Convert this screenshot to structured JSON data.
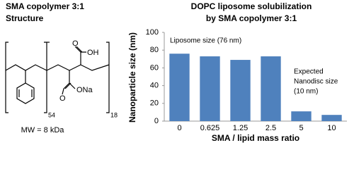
{
  "structure": {
    "title": [
      "SMA copolymer 3:1",
      "Structure"
    ],
    "atoms": [
      "O",
      "OH",
      "O",
      "ONa"
    ],
    "subscripts": [
      "54",
      "18"
    ],
    "mw": "MW = 8 kDa"
  },
  "chart_data": {
    "type": "bar",
    "title": [
      "DOPC liposome solubilization",
      "by SMA copolymer 3:1"
    ],
    "x_label": "SMA / lipid mass ratio",
    "y_label": "Nanoparticle size (nm)",
    "categories": [
      "0",
      "0.625",
      "1.25",
      "2.5",
      "5",
      "10"
    ],
    "values": [
      76,
      73,
      69,
      73,
      11,
      7
    ],
    "color": "#4f81bd",
    "ylim": [
      0,
      100
    ],
    "yticks": [
      0,
      20,
      40,
      60,
      80,
      100
    ],
    "grid": false,
    "annotations": [
      [
        "Liposome size (76 nm)"
      ],
      [
        "Expected",
        "Nanodisc size",
        "(10 nm)"
      ]
    ]
  }
}
